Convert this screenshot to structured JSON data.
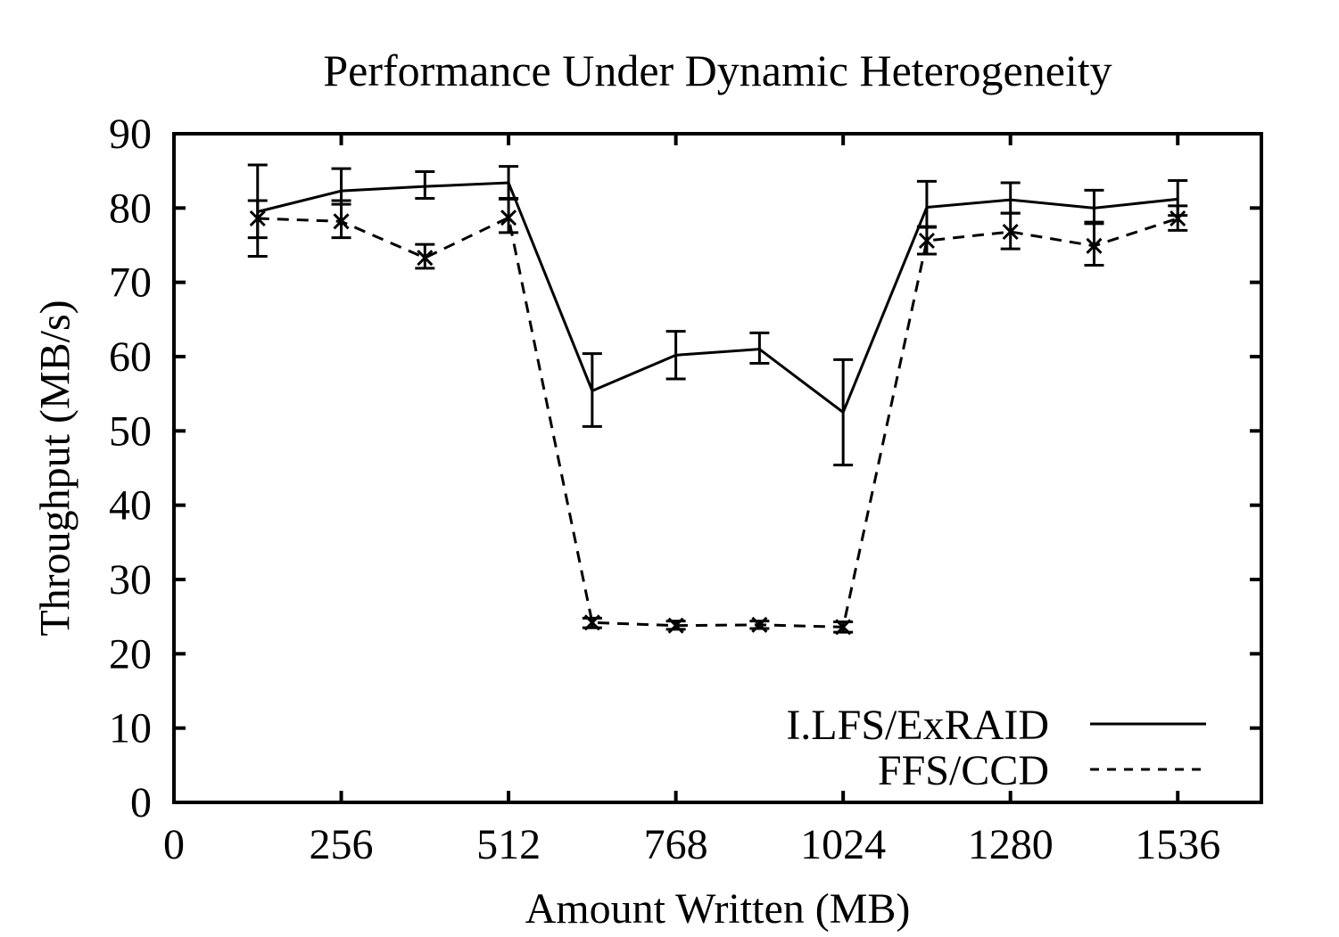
{
  "page": {
    "background": "#ffffff",
    "foreground": "#000000"
  },
  "chart_data": {
    "type": "line",
    "title": "Performance Under Dynamic Heterogeneity",
    "xlabel": "Amount Written (MB)",
    "ylabel": "Throughput (MB/s)",
    "xlim": [
      0,
      1664
    ],
    "ylim": [
      0,
      90
    ],
    "x_ticks": [
      0,
      256,
      512,
      768,
      1024,
      1280,
      1536
    ],
    "y_ticks": [
      0,
      10,
      20,
      30,
      40,
      50,
      60,
      70,
      80,
      90
    ],
    "grid": false,
    "legend_position": "inside-bottom-right",
    "x": [
      128,
      256,
      384,
      512,
      640,
      768,
      896,
      1024,
      1152,
      1280,
      1408,
      1536
    ],
    "series": [
      {
        "name": "I.LFS/ExRAID",
        "style": "solid",
        "marker": "none",
        "values": [
          79.5,
          82.3,
          82.9,
          83.4,
          55.4,
          60.2,
          61.0,
          52.5,
          80.1,
          81.1,
          80.0,
          81.2
        ],
        "err_low": [
          76.0,
          80.5,
          81.3,
          81.2,
          50.6,
          57.0,
          59.1,
          45.4,
          77.4,
          79.3,
          78.1,
          79.0
        ],
        "err_high": [
          85.8,
          85.3,
          84.9,
          85.6,
          60.4,
          63.4,
          63.2,
          59.6,
          83.6,
          83.4,
          82.4,
          83.7
        ]
      },
      {
        "name": "FFS/CCD",
        "style": "dashed",
        "marker": "x",
        "values": [
          78.6,
          78.2,
          73.3,
          78.7,
          24.2,
          23.8,
          23.9,
          23.6,
          75.6,
          76.8,
          74.9,
          78.6
        ],
        "err_low": [
          73.5,
          76.0,
          71.9,
          76.7,
          23.5,
          23.3,
          23.4,
          22.9,
          73.8,
          74.5,
          72.3,
          77.0
        ],
        "err_high": [
          81.0,
          81.0,
          75.1,
          81.3,
          24.8,
          24.4,
          24.4,
          24.3,
          77.5,
          79.3,
          77.9,
          80.3
        ]
      }
    ],
    "colors": {
      "foreground": "#000000",
      "background": "#ffffff"
    }
  }
}
